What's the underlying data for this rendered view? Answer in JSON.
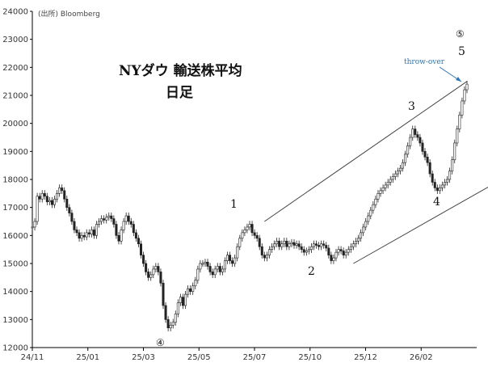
{
  "chart_data": {
    "type": "candlestick",
    "title": "NYダウ 輸送株平均",
    "subtitle": "日足",
    "source": "(出所) Bloomberg",
    "ylim": [
      12000,
      24000
    ],
    "y_ticks": [
      12000,
      13000,
      14000,
      15000,
      16000,
      17000,
      18000,
      19000,
      20000,
      21000,
      22000,
      23000,
      24000
    ],
    "x_ticks": [
      "24/11",
      "25/01",
      "25/03",
      "25/05",
      "25/07",
      "25/10",
      "25/12",
      "26/02"
    ],
    "grid": false,
    "series": [
      {
        "values": [
          16300,
          16500,
          17400,
          17300,
          17500,
          17400,
          17200,
          17250,
          17100,
          17300,
          17500,
          17700,
          17600,
          17300,
          17000,
          16800,
          16500,
          16200,
          16100,
          15900,
          16000,
          15950,
          16100,
          16050,
          16200,
          16000,
          16400,
          16500,
          16600,
          16550,
          16650,
          16700,
          16600,
          16400,
          16000,
          15800,
          16200,
          16500,
          16700,
          16500,
          16400,
          16100,
          15900,
          15700,
          15300,
          15000,
          14700,
          14500,
          14600,
          14800,
          14900,
          14700,
          14300,
          13500,
          13000,
          12700,
          12800,
          12900,
          13200,
          13600,
          13800,
          13500,
          13900,
          14100,
          14000,
          14200,
          14400,
          14800,
          15000,
          15000,
          15050,
          14900,
          14700,
          14600,
          14800,
          14900,
          14700,
          14800,
          15100,
          15300,
          15100,
          15000,
          15200,
          15600,
          15900,
          16100,
          16200,
          16300,
          16400,
          16100,
          16000,
          15900,
          15600,
          15300,
          15200,
          15300,
          15500,
          15600,
          15700,
          15800,
          15600,
          15700,
          15800,
          15600,
          15700,
          15750,
          15650,
          15700,
          15600,
          15500,
          15400,
          15450,
          15500,
          15600,
          15700,
          15650,
          15600,
          15700,
          15650,
          15550,
          15300,
          15100,
          15200,
          15400,
          15500,
          15450,
          15300,
          15400,
          15500,
          15600,
          15700,
          15800,
          15900,
          16100,
          16300,
          16500,
          16700,
          16900,
          17100,
          17300,
          17500,
          17600,
          17700,
          17800,
          17900,
          18000,
          18100,
          18200,
          18300,
          18400,
          18600,
          18900,
          19200,
          19500,
          19800,
          19600,
          19500,
          19300,
          19000,
          18800,
          18600,
          18200,
          17900,
          17700,
          17600,
          17700,
          17800,
          17900,
          18000,
          18300,
          18700,
          19300,
          19800,
          20300,
          20800,
          21200,
          21400
        ]
      }
    ],
    "annotations": [
      {
        "label": "1",
        "text": "1"
      },
      {
        "label": "2",
        "text": "2"
      },
      {
        "label": "3",
        "text": "3"
      },
      {
        "label": "4",
        "text": "4"
      },
      {
        "label": "5",
        "text": "5"
      },
      {
        "label": "circle4",
        "text": "④"
      },
      {
        "label": "circle5",
        "text": "⑤"
      },
      {
        "label": "throwover",
        "text": "throw-over"
      }
    ],
    "channel": {
      "upper": {
        "x_index": [
          94,
          176
        ],
        "y": [
          16500,
          21500
        ]
      },
      "lower": {
        "x_index": [
          130,
          200
        ],
        "y": [
          15000,
          18500
        ]
      }
    }
  }
}
